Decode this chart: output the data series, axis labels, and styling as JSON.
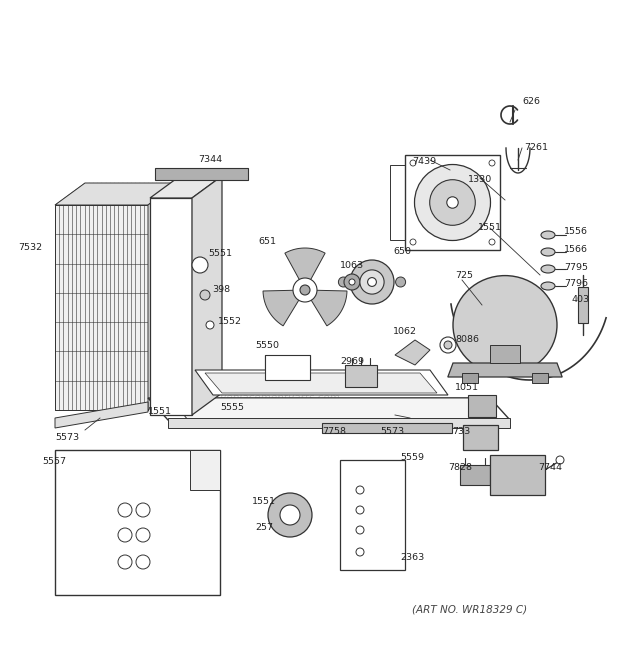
{
  "bg_color": "#ffffff",
  "line_color": "#333333",
  "label_color": "#222222",
  "label_fontsize": 6.8,
  "art_no": "(ART NO. WR18329 C)",
  "watermark": "ReplacementParts.com",
  "fig_w": 6.2,
  "fig_h": 6.61,
  "dpi": 100
}
